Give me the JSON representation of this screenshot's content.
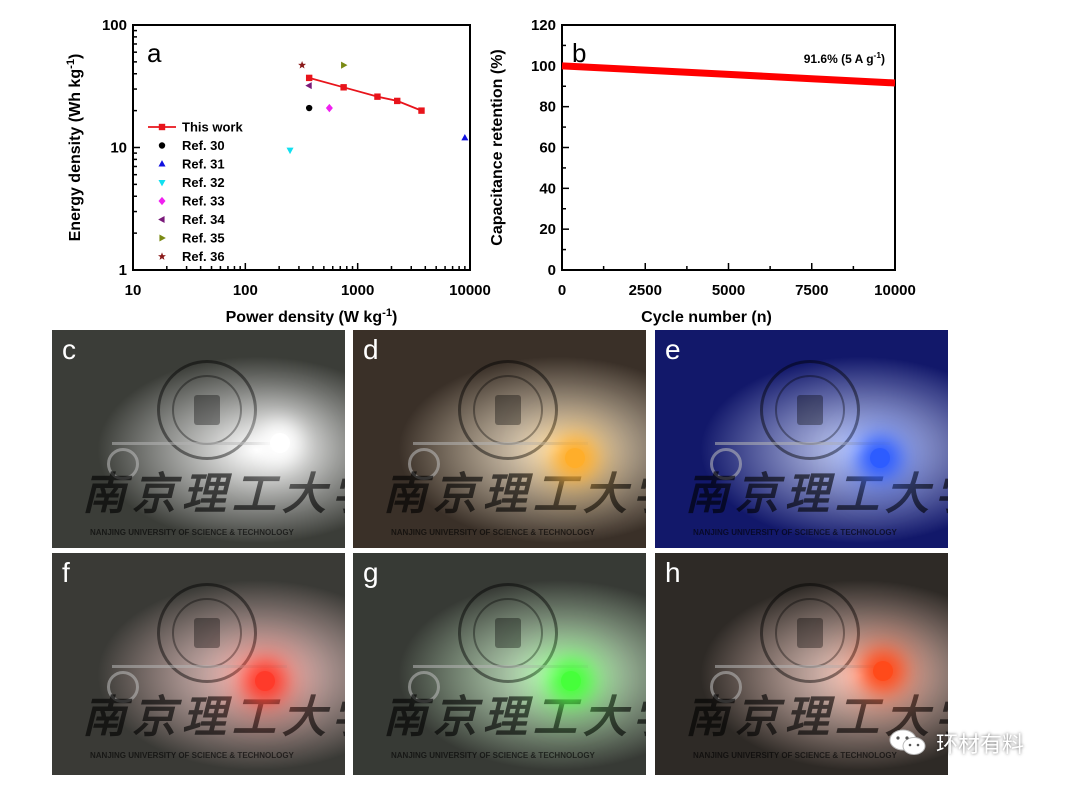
{
  "chart_data": [
    {
      "panel": "a",
      "type": "scatter",
      "xlabel": "Power density (W kg⁻¹)",
      "ylabel": "Energy density (Wh kg⁻¹)",
      "xscale": "log",
      "yscale": "log",
      "xlim": [
        10,
        10000
      ],
      "ylim": [
        1,
        100
      ],
      "xticks": [
        "10",
        "100",
        "1000",
        "10000"
      ],
      "yticks": [
        "1",
        "10",
        "100"
      ],
      "legend_position": "left",
      "series": [
        {
          "name": "This work",
          "marker": "square",
          "line": true,
          "color": "#e8141b",
          "x": [
            370,
            750,
            1500,
            2250,
            3700
          ],
          "y": [
            37,
            31,
            26,
            24,
            20
          ]
        },
        {
          "name": "Ref. 30",
          "marker": "circle",
          "color": "#000000",
          "x": [
            370
          ],
          "y": [
            21
          ]
        },
        {
          "name": "Ref. 31",
          "marker": "triangle-up",
          "color": "#1010e0",
          "x": [
            9000
          ],
          "y": [
            12
          ]
        },
        {
          "name": "Ref. 32",
          "marker": "triangle-down",
          "color": "#10e0f0",
          "x": [
            250
          ],
          "y": [
            9.5
          ]
        },
        {
          "name": "Ref. 33",
          "marker": "diamond",
          "color": "#f020f0",
          "x": [
            560
          ],
          "y": [
            21
          ]
        },
        {
          "name": "Ref. 34",
          "marker": "triangle-left",
          "color": "#7a1a7a",
          "x": [
            370
          ],
          "y": [
            32
          ]
        },
        {
          "name": "Ref. 35",
          "marker": "triangle-right",
          "color": "#7a8a14",
          "x": [
            750
          ],
          "y": [
            47
          ]
        },
        {
          "name": "Ref. 36",
          "marker": "star",
          "color": "#8a1a1a",
          "x": [
            320
          ],
          "y": [
            47
          ]
        }
      ]
    },
    {
      "panel": "b",
      "type": "line",
      "xlabel": "Cycle number (n)",
      "ylabel": "Capacitance retention (%)",
      "xlim": [
        0,
        10000
      ],
      "ylim": [
        0,
        120
      ],
      "xticks": [
        "0",
        "2500",
        "5000",
        "7500",
        "10000"
      ],
      "yticks": [
        "0",
        "20",
        "40",
        "60",
        "80",
        "100",
        "120"
      ],
      "color": "#ff0000",
      "series": [
        {
          "x": [
            0,
            2500,
            5000,
            7500,
            10000
          ],
          "y": [
            100,
            97.9,
            95.8,
            93.7,
            91.6
          ]
        }
      ],
      "annotation": "91.6% (5 A g⁻¹)"
    }
  ],
  "photos": [
    {
      "label": "c",
      "led_color": "#ffffff",
      "bg": "#3b3d38"
    },
    {
      "label": "d",
      "led_color": "#ffae2a",
      "bg": "#3a3028"
    },
    {
      "label": "e",
      "led_color": "#2d5cff",
      "bg": "#12186a"
    },
    {
      "label": "f",
      "led_color": "#ff3a2a",
      "bg": "#3a3a36"
    },
    {
      "label": "g",
      "led_color": "#46ff3a",
      "bg": "#373a35"
    },
    {
      "label": "h",
      "led_color": "#ff4a1a",
      "bg": "#2e2a26"
    }
  ],
  "photo_text": {
    "cn": "南京理工大学",
    "en": "NANJING UNIVERSITY OF SCIENCE & TECHNOLOGY"
  },
  "watermark": {
    "text": "环材有料"
  }
}
